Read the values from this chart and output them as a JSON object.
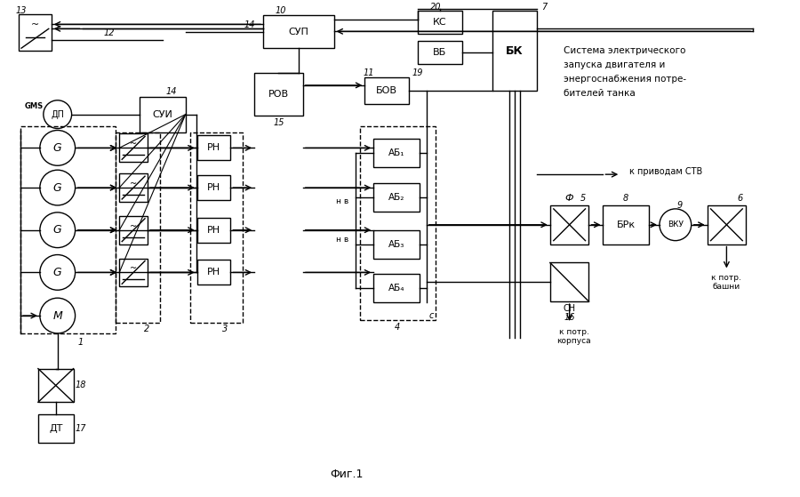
{
  "title": "Фиг.1",
  "description_text": [
    "Система электрического",
    "запуска двигателя и",
    "энергоснабжения потре-",
    "бителей танка"
  ],
  "bg_color": "#ffffff",
  "line_color": "#000000",
  "fig_width": 9.0,
  "fig_height": 5.59
}
